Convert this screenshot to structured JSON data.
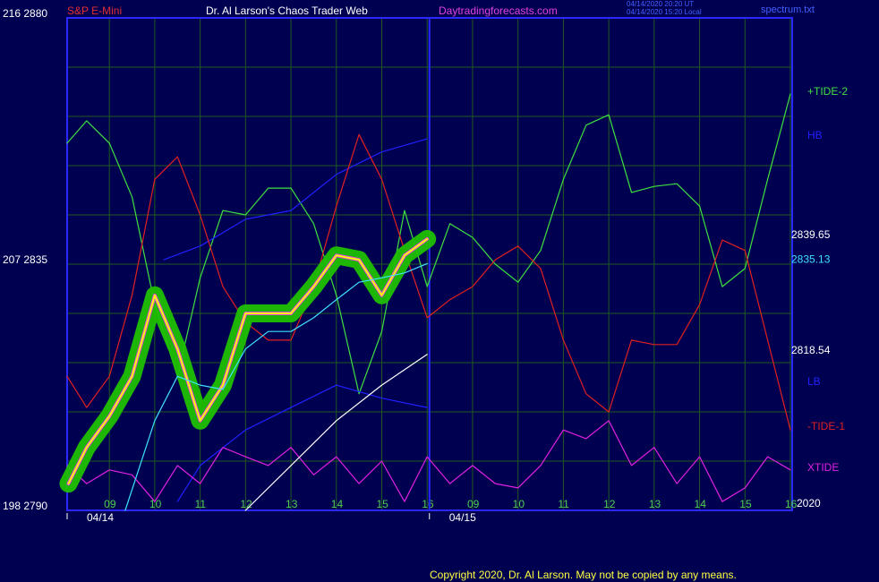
{
  "chart_data": {
    "type": "line",
    "instrument": "S&P E-Mini",
    "title": "Dr. Al Larson's Chaos Trader Web",
    "website": "Daytradingforecasts.com",
    "timestamps": [
      "04/14/2020 20:20 UT",
      "04/14/2020 15:20 Local"
    ],
    "file": "spectrum.txt",
    "year_label": "2020",
    "copyright": "Copyright 2020, Dr. Al Larson. May not be copied by any means.",
    "xlim": [
      8.07,
      24
    ],
    "ylim": [
      2790,
      2880
    ],
    "yticks": [
      {
        "value": 2880,
        "label": "216  2880"
      },
      {
        "value": 2835,
        "label": "207  2835"
      },
      {
        "value": 2790,
        "label": "198  2790"
      }
    ],
    "ygrid": [
      2799,
      2808,
      2817,
      2826,
      2835,
      2844,
      2853,
      2862,
      2871
    ],
    "xticks": [
      {
        "value": 9,
        "label": "09"
      },
      10,
      11,
      12,
      13,
      14,
      15,
      16,
      {
        "value": 17,
        "label": "09"
      },
      {
        "value": 18,
        "label": "10"
      },
      {
        "value": 19,
        "label": "11"
      },
      {
        "value": 20,
        "label": "12"
      },
      {
        "value": 21,
        "label": "13"
      },
      {
        "value": 22,
        "label": "14"
      },
      {
        "value": 23,
        "label": "15"
      },
      {
        "value": 24,
        "label": "16"
      }
    ],
    "day_marks": [
      {
        "value": 8.07,
        "label": "04/14"
      },
      {
        "value": 16.05,
        "label": "04/15"
      }
    ],
    "grid": true,
    "x": [
      8.07,
      8.5,
      9,
      9.5,
      10,
      10.5,
      11,
      11.5,
      12,
      12.5,
      13,
      13.5,
      14,
      14.5,
      15,
      15.5,
      16,
      16.5,
      17,
      17.5,
      18,
      18.5,
      19,
      19.5,
      20,
      20.5,
      21,
      21.5,
      22,
      22.5,
      23,
      23.5,
      24
    ],
    "series": [
      {
        "name": "+TIDE-2",
        "color": "#40e040",
        "values": [
          2857.1,
          2861.2,
          2857.1,
          2847.3,
          2827.6,
          2814.5,
          2832.5,
          2844.8,
          2844.0,
          2848.9,
          2848.9,
          2842.4,
          2829.3,
          2811.3,
          2822.7,
          2844.8,
          2830.9,
          2842.4,
          2839.9,
          2835.0,
          2831.7,
          2837.5,
          2850.5,
          2860.4,
          2862.3,
          2848.1,
          2849.2,
          2849.7,
          2845.6,
          2830.9,
          2834.2,
          2850.5,
          2866.1
        ]
      },
      {
        "name": "HB",
        "color": "#2020ff",
        "x": [
          10.2,
          11,
          12,
          13,
          14,
          15,
          16
        ],
        "values": [
          2835.8,
          2838.3,
          2843.2,
          2844.8,
          2851.4,
          2855.5,
          2857.9
        ]
      },
      {
        "name": "LB",
        "color": "#2020ff",
        "x": [
          10.5,
          11,
          12,
          13,
          14,
          15,
          16
        ],
        "values": [
          2791.6,
          2798.2,
          2804.7,
          2808.8,
          2812.9,
          2810.5,
          2808.8
        ]
      },
      {
        "name": "-TIDE-1",
        "color": "#e02020",
        "values": [
          2814.5,
          2808.8,
          2814.5,
          2829.3,
          2850.5,
          2854.6,
          2844.0,
          2830.9,
          2824.4,
          2821.1,
          2821.1,
          2830.9,
          2845.6,
          2858.7,
          2850.5,
          2837.5,
          2825.2,
          2828.5,
          2830.9,
          2835.8,
          2838.3,
          2834.2,
          2821.1,
          2811.3,
          2808.0,
          2821.1,
          2820.3,
          2820.3,
          2827.6,
          2839.4,
          2837.5,
          2821.1,
          2804.7
        ]
      },
      {
        "name": "XTIDE",
        "color": "#e020e0",
        "values": [
          2798.2,
          2794.9,
          2797.4,
          2796.5,
          2791.6,
          2798.2,
          2794.9,
          2801.5,
          2799.8,
          2798.2,
          2801.5,
          2796.5,
          2799.8,
          2794.9,
          2799.0,
          2791.6,
          2799.8,
          2794.9,
          2798.2,
          2794.9,
          2794.1,
          2798.2,
          2804.7,
          2803.1,
          2806.4,
          2798.2,
          2801.5,
          2794.9,
          2799.8,
          2791.6,
          2794.1,
          2799.8,
          2797.4
        ]
      },
      {
        "color": "#ffff00",
        "halo": "#20c000",
        "end_value": 2839.65,
        "end_color": "#ffffff",
        "x": [
          8.1,
          8.5,
          9,
          9.5,
          10,
          10.5,
          11,
          11.5,
          12,
          12.5,
          13,
          13.5,
          14,
          14.5,
          15,
          15.5,
          16
        ],
        "values": [
          2794.9,
          2801.5,
          2807.2,
          2814.5,
          2829.3,
          2819.5,
          2806.4,
          2812.9,
          2826.0,
          2826.0,
          2826.0,
          2830.9,
          2836.6,
          2835.8,
          2829.3,
          2836.6,
          2839.6
        ]
      },
      {
        "color": "#40e0ff",
        "end_value": 2835.13,
        "end_color": "#40e0ff",
        "x": [
          9.35,
          10,
          10.5,
          11,
          11.5,
          12,
          12.5,
          13,
          13.5,
          14,
          14.5,
          15,
          15.5,
          16
        ],
        "values": [
          2790.0,
          2806.4,
          2814.5,
          2812.9,
          2812.1,
          2819.5,
          2822.7,
          2822.7,
          2825.2,
          2828.5,
          2831.7,
          2832.5,
          2833.4,
          2835.1
        ]
      },
      {
        "color": "#ffffff",
        "end_value": 2818.54,
        "end_color": "#ffffff",
        "x": [
          12,
          13,
          14,
          15,
          16
        ],
        "values": [
          2790.0,
          2798.2,
          2806.4,
          2812.9,
          2818.5
        ]
      }
    ]
  }
}
